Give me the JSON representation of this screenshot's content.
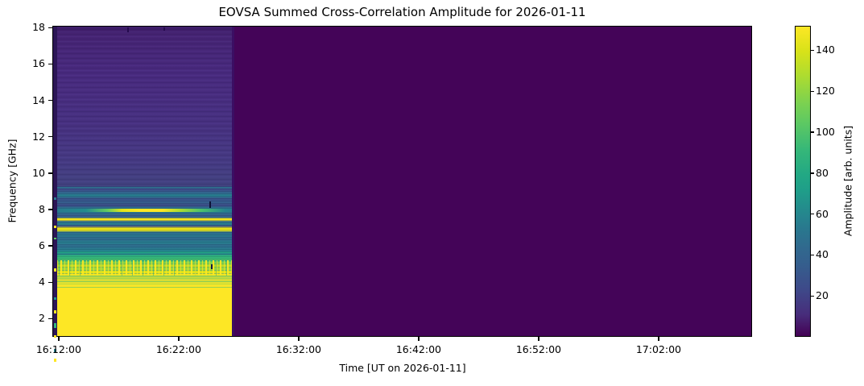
{
  "chart_data": {
    "type": "heatmap",
    "title": "EOVSA Summed Cross-Correlation Amplitude for 2026-01-11",
    "xlabel": "Time [UT on 2026-01-11]",
    "ylabel": "Frequency [GHz]",
    "colorbar_label": "Amplitude [arb. units]",
    "colormap": "viridis",
    "x_ticks": [
      {
        "label": "16:12:00",
        "minutes": 12
      },
      {
        "label": "16:22:00",
        "minutes": 22
      },
      {
        "label": "16:32:00",
        "minutes": 32
      },
      {
        "label": "16:42:00",
        "minutes": 42
      },
      {
        "label": "16:52:00",
        "minutes": 52
      },
      {
        "label": "17:02:00",
        "minutes": 62
      }
    ],
    "x_axis_range_minutes": [
      11.47,
      69.79
    ],
    "x_axis_range_time": [
      "16:11:28",
      "17:09:47"
    ],
    "y_ticks": [
      18,
      16,
      14,
      12,
      10,
      8,
      6,
      4,
      2
    ],
    "y_range_ghz": [
      1.0,
      18.1
    ],
    "colorbar_ticks": [
      140,
      120,
      100,
      80,
      60,
      40,
      20
    ],
    "colorbar_range": [
      0,
      152
    ],
    "grid": false,
    "legend": "none (colorbar on right)",
    "heatmap_content": {
      "data_time_span": {
        "start": "16:11:30",
        "end": "16:26:34"
      },
      "no_data_region": "uniform minimum-amplitude purple from ~16:26:34 to end of x-axis",
      "frequency_bands": [
        {
          "ghz": "9-18",
          "amplitude": "~5-30",
          "appearance": "dark purple-indigo with faint horizontal banding"
        },
        {
          "ghz": "5.5-9",
          "amplitude": "~40-90",
          "appearance": "blue-teal stripes with saturated yellow lines near 8.0, 7.5 and 7.0 GHz"
        },
        {
          "ghz": "4.5-5.5",
          "amplitude": "~100-150",
          "appearance": "noisy speckled green/yellow band"
        },
        {
          "ghz": "1-4.5",
          "amplitude": ">150 (saturated)",
          "appearance": "solid yellow block"
        }
      ],
      "artifacts": "tiny dark dropout dashes near 16:24 at ~8.3 GHz and ~4.9 GHz; dark first-sample column at left edge"
    },
    "colors": {
      "figure_background": "#ffffff",
      "no_data_purple": "#440458",
      "saturated_yellow": "#fde725",
      "viridis_min": "#440154",
      "viridis_max": "#fde725",
      "axis_and_text": "#000000"
    }
  }
}
